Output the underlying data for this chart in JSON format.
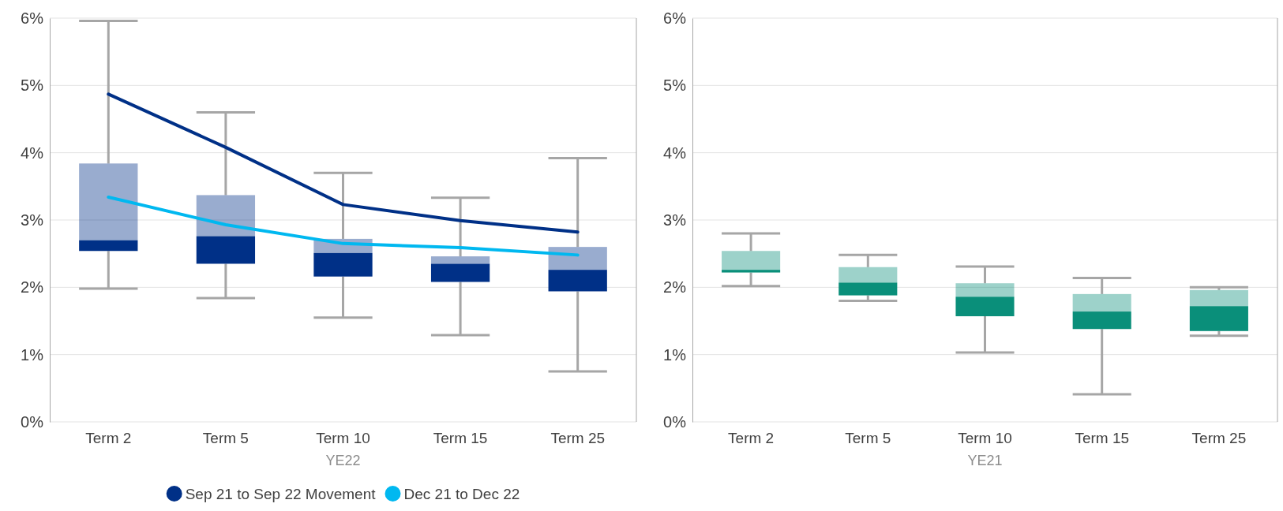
{
  "chart_data": [
    {
      "type": "box",
      "xlabel": "YE22",
      "categories": [
        "Term 2",
        "Term 5",
        "Term 10",
        "Term 15",
        "Term 25"
      ],
      "ylim": [
        0,
        6
      ],
      "yticks": [
        {
          "value": 0,
          "label": "0%"
        },
        {
          "value": 1,
          "label": "1%"
        },
        {
          "value": 2,
          "label": "2%"
        },
        {
          "value": 3,
          "label": "3%"
        },
        {
          "value": 4,
          "label": "4%"
        },
        {
          "value": 5,
          "label": "5%"
        },
        {
          "value": 6,
          "label": "6%"
        }
      ],
      "grid": "y",
      "legend": "bottom",
      "series": [
        {
          "color": "#003087",
          "boxes": [
            {
              "low": 1.98,
              "q1": 2.54,
              "median": 2.7,
              "q3": 3.84,
              "high": 5.96
            },
            {
              "low": 1.84,
              "q1": 2.35,
              "median": 2.76,
              "q3": 3.37,
              "high": 4.6
            },
            {
              "low": 1.55,
              "q1": 2.16,
              "median": 2.51,
              "q3": 2.72,
              "high": 3.7
            },
            {
              "low": 1.29,
              "q1": 2.08,
              "median": 2.35,
              "q3": 2.46,
              "high": 3.33
            },
            {
              "low": 0.75,
              "q1": 1.94,
              "median": 2.26,
              "q3": 2.6,
              "high": 3.92
            }
          ]
        },
        {
          "type": "line",
          "name": "Sep 21 to Sep 22 Movement",
          "color": "#003087",
          "values": [
            4.87,
            4.08,
            3.23,
            2.99,
            2.82
          ]
        },
        {
          "type": "line",
          "name": "Dec 21 to Dec 22",
          "color": "#00b8f0",
          "values": [
            3.34,
            2.93,
            2.65,
            2.59,
            2.48
          ]
        }
      ]
    },
    {
      "type": "box",
      "xlabel": "YE21",
      "categories": [
        "Term 2",
        "Term 5",
        "Term 10",
        "Term 15",
        "Term 25"
      ],
      "ylim": [
        0,
        6
      ],
      "yticks": [
        {
          "value": 0,
          "label": "0%"
        },
        {
          "value": 1,
          "label": "1%"
        },
        {
          "value": 2,
          "label": "2%"
        },
        {
          "value": 3,
          "label": "3%"
        },
        {
          "value": 4,
          "label": "4%"
        },
        {
          "value": 5,
          "label": "5%"
        },
        {
          "value": 6,
          "label": "6%"
        }
      ],
      "grid": "y",
      "series": [
        {
          "color": "#0a8f7a",
          "boxes": [
            {
              "low": 2.02,
              "q1": 2.22,
              "median": 2.26,
              "q3": 2.54,
              "high": 2.8
            },
            {
              "low": 1.8,
              "q1": 1.88,
              "median": 2.07,
              "q3": 2.3,
              "high": 2.48
            },
            {
              "low": 1.03,
              "q1": 1.57,
              "median": 1.86,
              "q3": 2.06,
              "high": 2.31
            },
            {
              "low": 0.41,
              "q1": 1.38,
              "median": 1.64,
              "q3": 1.9,
              "high": 2.14
            },
            {
              "low": 1.28,
              "q1": 1.35,
              "median": 1.72,
              "q3": 1.96,
              "high": 2.0
            }
          ]
        }
      ]
    }
  ]
}
